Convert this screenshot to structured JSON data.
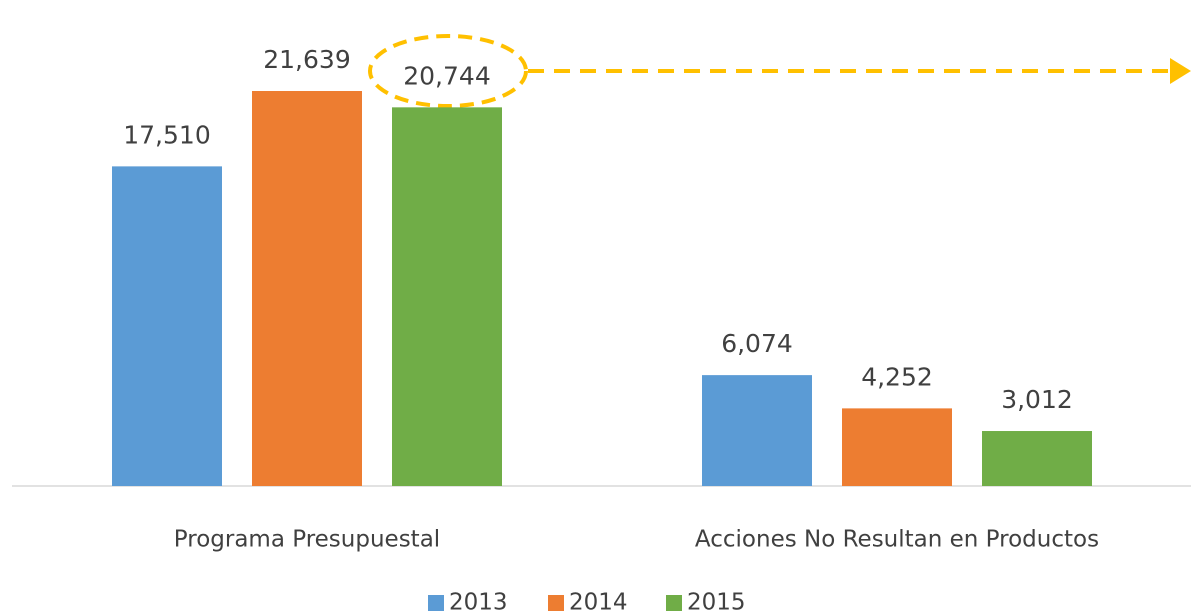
{
  "chart_data": {
    "type": "bar",
    "categories": [
      "Programa Presupuestal",
      "Acciones No Resultan en Productos"
    ],
    "series": [
      {
        "name": "2013",
        "color": "#5b9bd5",
        "values": [
          17510,
          6074
        ],
        "value_labels": [
          "17,510",
          "6,074"
        ]
      },
      {
        "name": "2014",
        "color": "#ed7d31",
        "values": [
          21639,
          4252
        ],
        "value_labels": [
          "21,639",
          "4,252"
        ]
      },
      {
        "name": "2015",
        "color": "#70ad47",
        "values": [
          20744,
          3012
        ],
        "value_labels": [
          "20,744",
          "3,012"
        ]
      }
    ]
  }
}
